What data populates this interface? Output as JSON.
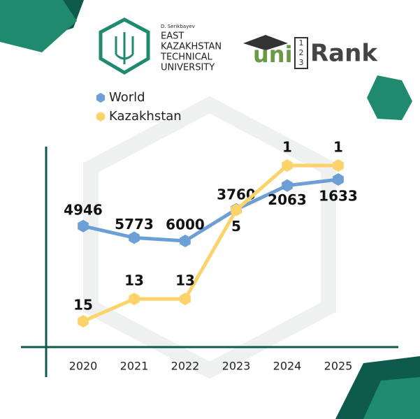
{
  "header": {
    "university": {
      "prefix": "D. Serikbayev",
      "lines": [
        "EAST",
        "KAZAKHSTAN",
        "TECHNICAL",
        "UNIVERSITY"
      ]
    },
    "unirank": {
      "left": "uni",
      "digits": [
        "1",
        "2",
        "3"
      ],
      "right": "Rank"
    }
  },
  "chart_data": {
    "type": "line",
    "categories": [
      "2020",
      "2021",
      "2022",
      "2023",
      "2024",
      "2025"
    ],
    "series": [
      {
        "name": "World",
        "color": "#6b9fd6",
        "values": [
          4946,
          5773,
          6000,
          3760,
          2063,
          1633
        ]
      },
      {
        "name": "Kazakhstan",
        "color": "#fbd36a",
        "values": [
          15,
          13,
          13,
          5,
          1,
          1
        ]
      }
    ]
  }
}
